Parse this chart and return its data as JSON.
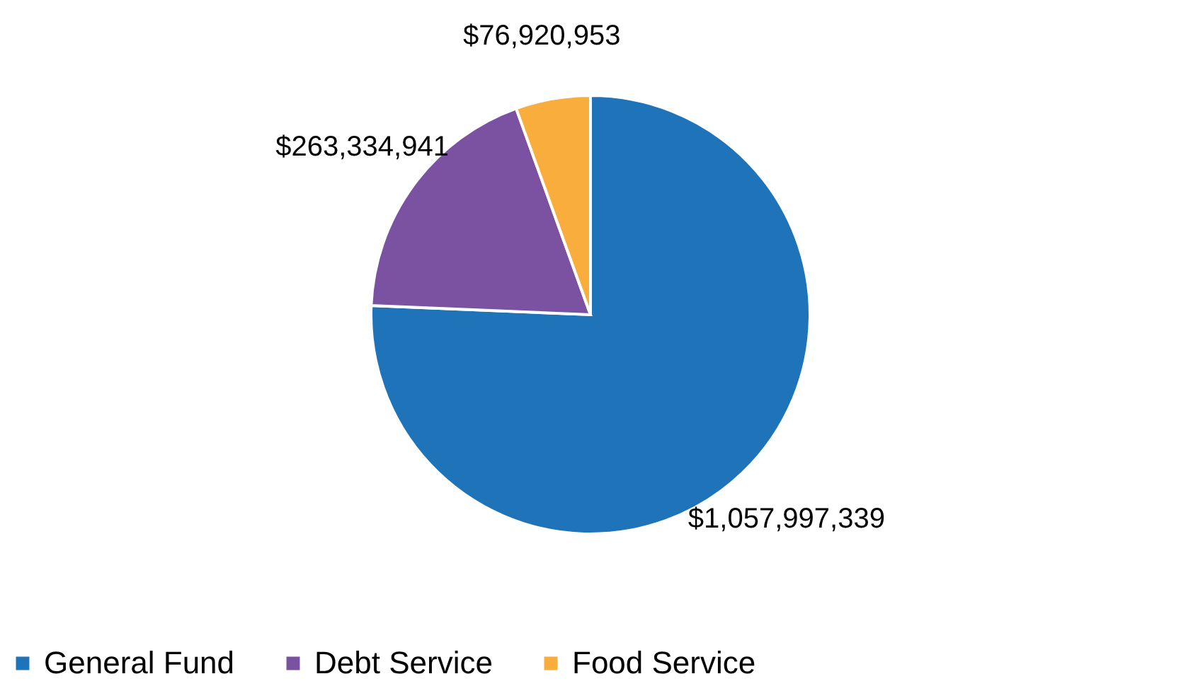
{
  "chart_data": {
    "type": "pie",
    "categories": [
      "General Fund",
      "Debt Service",
      "Food Service"
    ],
    "values": [
      1057997339,
      263334941,
      76920953
    ],
    "colors": [
      "#1f73b9",
      "#7b51a1",
      "#f9ad3d"
    ],
    "value_labels": [
      "$1,057,997,339",
      "$263,334,941",
      "$76,920,953"
    ],
    "legend": "bottom"
  }
}
